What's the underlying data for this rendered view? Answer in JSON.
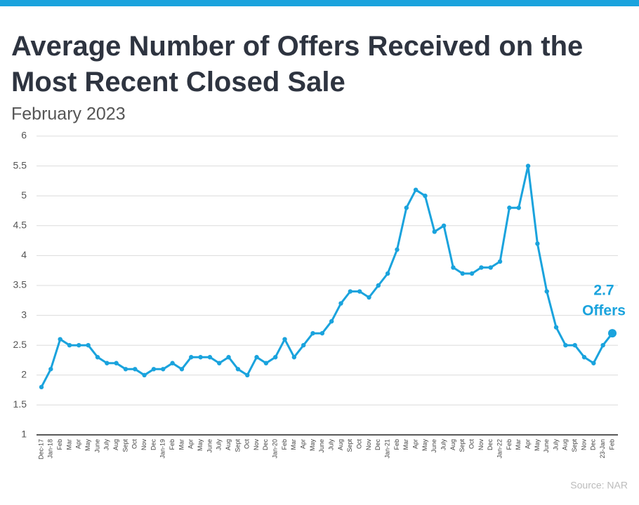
{
  "chart_data": {
    "type": "line",
    "title": "Average Number of Offers Received on the Most Recent Closed Sale",
    "subtitle": "February 2023",
    "source": "Source: NAR",
    "annotation": [
      "2.7",
      "Offers"
    ],
    "categories": [
      "Dec-17",
      "Jan-18",
      "Feb",
      "Mar",
      "Apr",
      "May",
      "June",
      "July",
      "Aug",
      "Sept",
      "Oct",
      "Nov",
      "Dec",
      "Jan-19",
      "Feb",
      "Mar",
      "Apr",
      "May",
      "June",
      "July",
      "Aug",
      "Sept",
      "Oct",
      "Nov",
      "Dec",
      "Jan-20",
      "Feb",
      "Mar",
      "Apr",
      "May",
      "June",
      "July",
      "Aug",
      "Sept",
      "Oct",
      "Nov",
      "Dec",
      "Jan-21",
      "Feb",
      "Mar",
      "Apr",
      "May",
      "June",
      "July",
      "Aug",
      "Sept",
      "Oct",
      "Nov",
      "Dec",
      "Jan-22",
      "Feb",
      "Mar",
      "Apr",
      "May",
      "June",
      "July",
      "Aug",
      "Sept",
      "Nov",
      "Dec",
      "23-Jan",
      "Feb"
    ],
    "series": [
      {
        "name": "Average Number of Offers",
        "color": "#1aa3dd",
        "values": [
          1.8,
          2.1,
          2.6,
          2.5,
          2.5,
          2.5,
          2.3,
          2.2,
          2.2,
          2.1,
          2.1,
          2.0,
          2.1,
          2.1,
          2.2,
          2.1,
          2.3,
          2.3,
          2.3,
          2.2,
          2.3,
          2.1,
          2.0,
          2.3,
          2.2,
          2.3,
          2.6,
          2.3,
          2.5,
          2.7,
          2.7,
          2.9,
          3.2,
          3.4,
          3.4,
          3.3,
          3.5,
          3.7,
          4.1,
          4.8,
          5.1,
          5.0,
          4.4,
          4.5,
          3.8,
          3.7,
          3.7,
          3.8,
          3.8,
          3.9,
          4.8,
          4.8,
          5.5,
          4.2,
          3.4,
          2.8,
          2.5,
          2.5,
          2.3,
          2.2,
          2.5,
          2.7
        ]
      }
    ],
    "ylim": [
      1,
      6
    ],
    "yticks": [
      1,
      1.5,
      2,
      2.5,
      3,
      3.5,
      4,
      4.5,
      5,
      5.5,
      6
    ],
    "grid": true
  }
}
